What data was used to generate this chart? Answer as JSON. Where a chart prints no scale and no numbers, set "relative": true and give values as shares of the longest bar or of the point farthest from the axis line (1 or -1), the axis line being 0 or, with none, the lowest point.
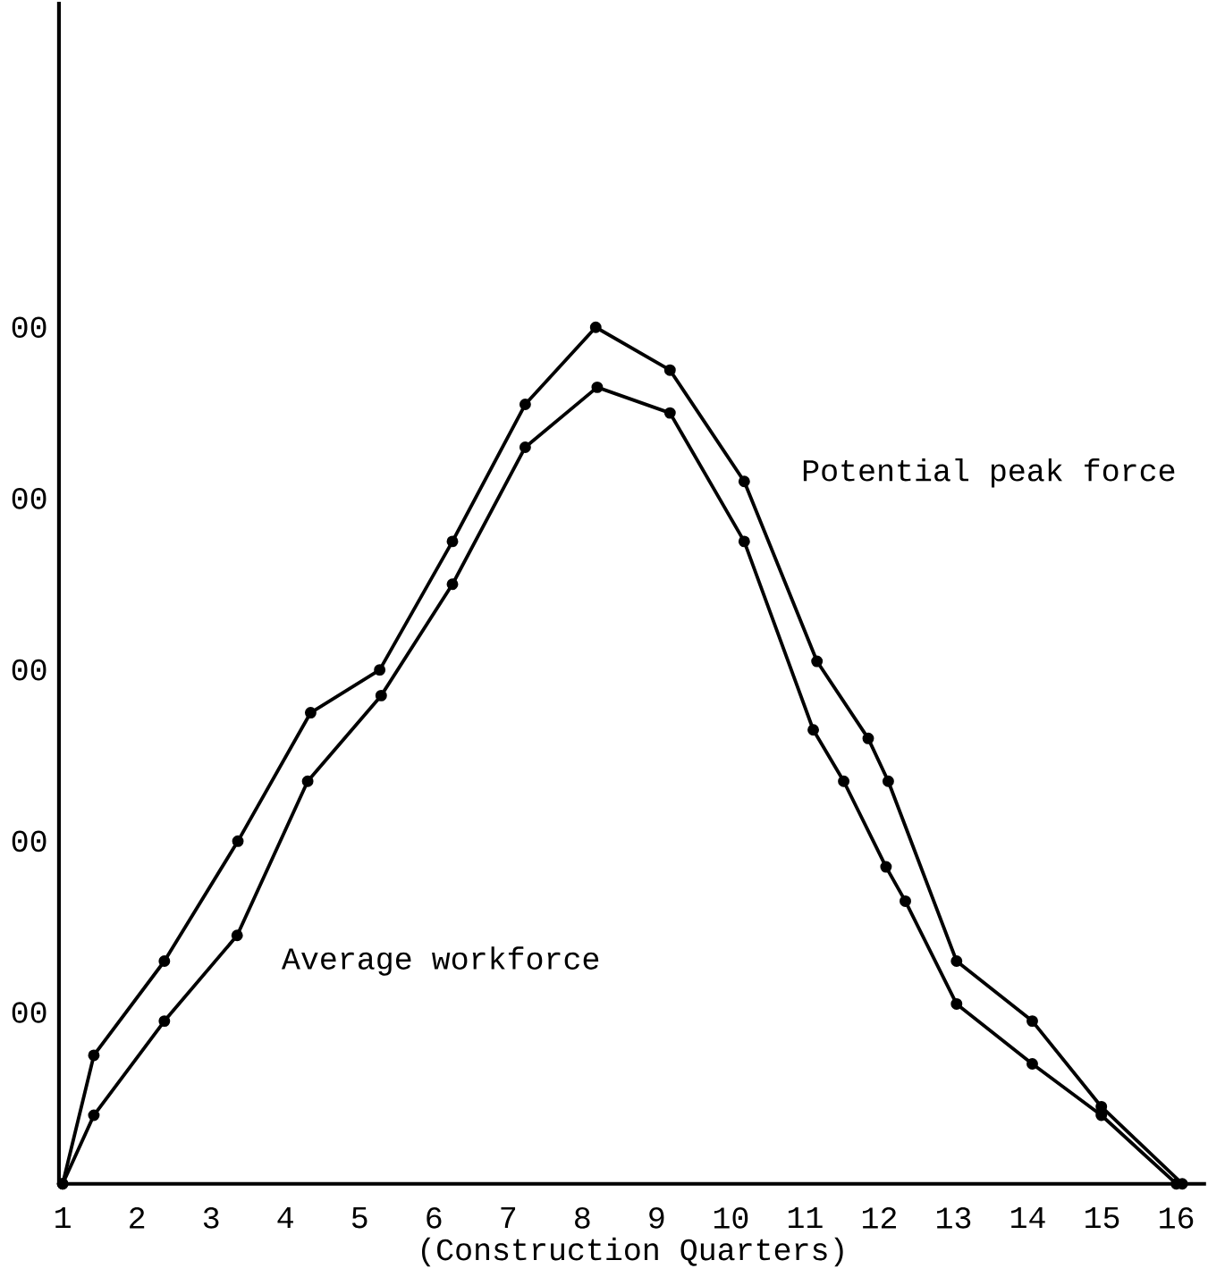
{
  "chart_data": {
    "type": "line",
    "xlabel": "(Construction Quarters)",
    "relative": true,
    "xlim": [
      0.95,
      16.4
    ],
    "xticks": [
      1,
      2,
      3,
      4,
      5,
      6,
      7,
      8,
      9,
      10,
      11,
      12,
      13,
      14,
      15,
      16
    ],
    "annotations": [
      "00",
      "00",
      "00",
      "00",
      "00"
    ],
    "marker": "circle",
    "line_style": "solid",
    "grid": false,
    "legend": false,
    "series": [
      {
        "name": "Potential peak force",
        "color": "#000000",
        "x": [
          1.0,
          1.42,
          2.37,
          3.36,
          4.34,
          5.27,
          6.25,
          7.23,
          8.18,
          9.18,
          10.18,
          11.16,
          11.85,
          12.12,
          13.04,
          14.06,
          14.99,
          16.08
        ],
        "values": [
          0,
          0.15,
          0.26,
          0.4,
          0.55,
          0.6,
          0.75,
          0.91,
          1,
          0.95,
          0.82,
          0.61,
          0.52,
          0.47,
          0.26,
          0.19,
          0.09,
          0
        ]
      },
      {
        "name": "Average workforce",
        "color": "#000000",
        "x": [
          1.0,
          1.42,
          2.37,
          3.35,
          4.3,
          5.29,
          6.25,
          7.23,
          8.2,
          9.18,
          10.18,
          11.11,
          11.52,
          12.09,
          12.35,
          13.04,
          14.06,
          14.99,
          16.0
        ],
        "values": [
          0,
          0.08,
          0.19,
          0.29,
          0.47,
          0.57,
          0.7,
          0.86,
          0.93,
          0.9,
          0.75,
          0.53,
          0.47,
          0.37,
          0.33,
          0.21,
          0.14,
          0.08,
          0
        ]
      }
    ]
  }
}
